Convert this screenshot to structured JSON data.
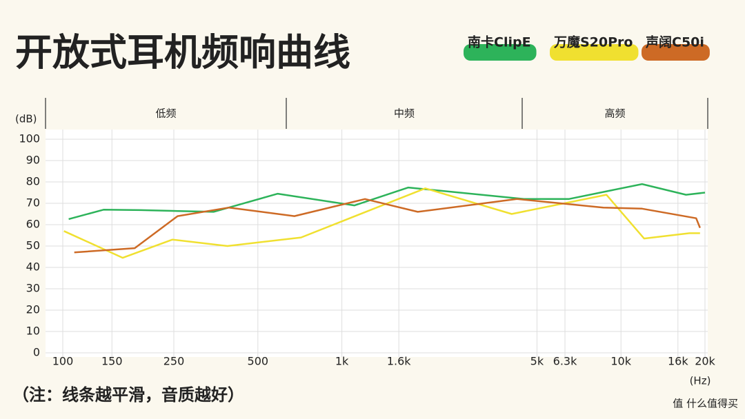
{
  "chart_data": {
    "type": "line",
    "title": "开放式耳机频响曲线",
    "bands": [
      "低频",
      "中频",
      "高频"
    ],
    "y_label": "(dB)",
    "x_label": "(Hz)",
    "note": "（注：线条越平滑，音质越好）",
    "watermark": "值 什么值得买",
    "log_x": true,
    "grid": true,
    "legend": "top-right",
    "xlim": [
      100,
      20000
    ],
    "xticks": [
      100,
      150,
      250,
      500,
      {
        "value": 1000,
        "label": "1k"
      },
      {
        "value": 1600,
        "label": "1.6k"
      },
      {
        "value": 5000,
        "label": "5k"
      },
      {
        "value": 6300,
        "label": "6.3k"
      },
      {
        "value": 10000,
        "label": "10k"
      },
      {
        "value": 16000,
        "label": "16k"
      },
      {
        "value": 20000,
        "label": "20k"
      }
    ],
    "ylim": [
      0,
      100
    ],
    "yticks": [
      0,
      10,
      20,
      30,
      40,
      50,
      60,
      70,
      80,
      90,
      100
    ],
    "series": [
      {
        "name": "南卡ClipE",
        "color": "#2db35a",
        "x": [
          105,
          140,
          191,
          347,
          589,
          1110,
          1730,
          4490,
          6500,
          11900,
          17100,
          20000
        ],
        "values": [
          62.6,
          67,
          66.8,
          66,
          74.5,
          69,
          77.4,
          72,
          72,
          79,
          74,
          75
        ]
      },
      {
        "name": "万魔S20Pro",
        "color": "#f0e030",
        "x": [
          101,
          164,
          247,
          389,
          714,
          1990,
          4060,
          8870,
          12100,
          17600,
          19200
        ],
        "values": [
          57,
          44.5,
          53,
          50,
          54,
          77,
          65,
          74,
          53.5,
          56,
          56
        ]
      },
      {
        "name": "声阔C50i",
        "color": "#cd6a25",
        "x": [
          110,
          181,
          258,
          394,
          676,
          1210,
          1870,
          4240,
          8650,
          11900,
          18600,
          19200
        ],
        "values": [
          47,
          49,
          64,
          68,
          64,
          72,
          66,
          72,
          68,
          67.5,
          63,
          58.5
        ]
      }
    ]
  }
}
